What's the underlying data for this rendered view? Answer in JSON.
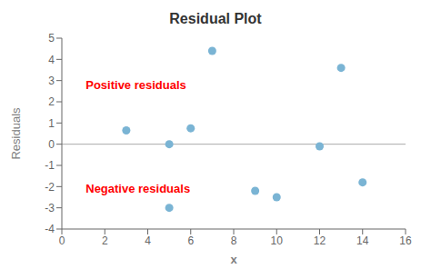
{
  "chart_data": {
    "type": "scatter",
    "title": "Residual Plot",
    "x_label": "x",
    "y_label": "Residuals",
    "x": [
      3,
      5,
      6,
      7,
      9,
      10,
      12,
      13,
      14,
      5
    ],
    "values": [
      0.65,
      0.0,
      0.75,
      4.4,
      -2.2,
      -2.5,
      -0.1,
      3.6,
      -1.8,
      -3.0
    ],
    "color": "#7ab4d4",
    "xlim": [
      0,
      16
    ],
    "ylim": [
      -4,
      5
    ],
    "xticks": [
      0,
      2,
      4,
      6,
      8,
      10,
      12,
      14,
      16
    ],
    "yticks": [
      -4,
      -3,
      -2,
      -1,
      0,
      1,
      2,
      3,
      4,
      5
    ],
    "grid": false,
    "annotations": [
      {
        "text": "Positive residuals",
        "x": 0.9,
        "y": 2.8,
        "color": "red"
      },
      {
        "text": "Negative residuals",
        "x": 0.9,
        "y": -2.1,
        "color": "red"
      }
    ]
  }
}
